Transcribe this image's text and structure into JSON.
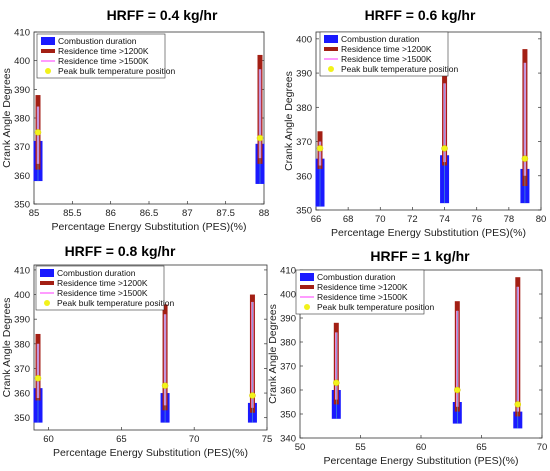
{
  "legend_labels": {
    "combustion": "Combustion duration",
    "res1200": "Residence time >1200K",
    "res1500": "Residence time >1500K",
    "peak": "Peak bulk temperature position"
  },
  "colors": {
    "combustion": "#1a1aff",
    "res1200": "#a31f14",
    "res1500": "#ff9cff",
    "peak": "#f2f21a",
    "mid_line": "#4ea8c8"
  },
  "chart_data": [
    {
      "type": "bar",
      "title": "HRFF = 0.4 kg/hr",
      "xlabel": "Percentage Energy Substitution (PES)(%)",
      "ylabel": "Crank Angle Degrees",
      "xlim": [
        85,
        88
      ],
      "ylim": [
        350,
        410
      ],
      "xticks": [
        85,
        85.5,
        86,
        86.5,
        87,
        87.5,
        88
      ],
      "yticks": [
        350,
        360,
        370,
        380,
        390,
        400,
        410
      ],
      "legend_position": "top-left",
      "points": [
        {
          "x": 85,
          "combustion": [
            358,
            372
          ],
          "res1200": [
            362,
            388
          ],
          "res1500": [
            364,
            384
          ],
          "peak": 375
        },
        {
          "x": 88,
          "combustion": [
            357,
            371
          ],
          "res1200": [
            364,
            402
          ],
          "res1500": [
            366,
            397
          ],
          "peak": 373
        }
      ]
    },
    {
      "type": "bar",
      "title": "HRFF = 0.6 kg/hr",
      "xlabel": "Percentage Energy Substitution (PES)(%)",
      "ylabel": "Crank Angle Degrees",
      "xlim": [
        66,
        80
      ],
      "ylim": [
        350,
        402
      ],
      "xticks": [
        66,
        68,
        70,
        72,
        74,
        76,
        78,
        80
      ],
      "yticks": [
        350,
        360,
        370,
        380,
        390,
        400
      ],
      "legend_position": "top-right",
      "points": [
        {
          "x": 66,
          "combustion": [
            351,
            365
          ],
          "res1200": [
            362,
            373
          ],
          "res1500": [
            363,
            370
          ],
          "peak": 368
        },
        {
          "x": 74,
          "combustion": [
            352,
            366
          ],
          "res1200": [
            363,
            391
          ],
          "res1500": [
            364,
            387
          ],
          "peak": 368
        },
        {
          "x": 79,
          "combustion": [
            352,
            362
          ],
          "res1200": [
            357,
            397
          ],
          "res1500": [
            360,
            393
          ],
          "peak": 365
        }
      ]
    },
    {
      "type": "bar",
      "title": "HRFF = 0.8 kg/hr",
      "xlabel": "Percentage Energy Substitution (PES)(%)",
      "ylabel": "Crank Angle Degrees",
      "xlim": [
        59,
        75
      ],
      "ylim": [
        345,
        412
      ],
      "xticks": [
        60,
        65,
        70,
        75
      ],
      "yticks": [
        350,
        360,
        370,
        380,
        390,
        400,
        410
      ],
      "legend_position": "top-left",
      "points": [
        {
          "x": 59,
          "combustion": [
            348,
            362
          ],
          "res1200": [
            357,
            384
          ],
          "res1500": [
            358,
            380
          ],
          "peak": 366
        },
        {
          "x": 68,
          "combustion": [
            348,
            360
          ],
          "res1200": [
            353,
            396
          ],
          "res1500": [
            355,
            392
          ],
          "peak": 363
        },
        {
          "x": 74,
          "combustion": [
            348,
            356
          ],
          "res1200": [
            352,
            400
          ],
          "res1500": [
            354,
            397
          ],
          "peak": 359
        }
      ]
    },
    {
      "type": "bar",
      "title": "HRFF = 1 kg/hr",
      "xlabel": "Percentage Energy Substitution (PES)(%)",
      "ylabel": "Crank Angle Degrees",
      "xlim": [
        50,
        70
      ],
      "ylim": [
        340,
        410
      ],
      "xticks": [
        50,
        55,
        60,
        65,
        70
      ],
      "yticks": [
        340,
        350,
        360,
        370,
        380,
        390,
        400,
        410
      ],
      "legend_position": "top-left",
      "points": [
        {
          "x": 53,
          "combustion": [
            348,
            360
          ],
          "res1200": [
            354,
            388
          ],
          "res1500": [
            356,
            384
          ],
          "peak": 363
        },
        {
          "x": 63,
          "combustion": [
            346,
            355
          ],
          "res1200": [
            351,
            397
          ],
          "res1500": [
            353,
            393
          ],
          "peak": 360
        },
        {
          "x": 68,
          "combustion": [
            344,
            351
          ],
          "res1200": [
            349,
            407
          ],
          "res1500": [
            351,
            403
          ],
          "peak": 354
        }
      ]
    }
  ]
}
